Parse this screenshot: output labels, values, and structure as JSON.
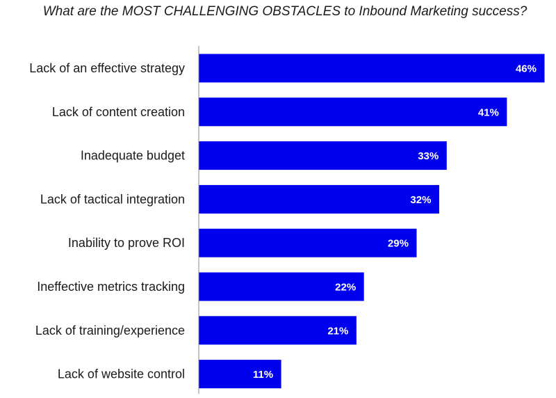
{
  "chart_data": {
    "type": "bar",
    "orientation": "horizontal",
    "title": "What are the MOST CHALLENGING OBSTACLES to Inbound Marketing success?",
    "categories": [
      "Lack of an effective strategy",
      "Lack of content creation",
      "Inadequate budget",
      "Lack of tactical integration",
      "Inability to prove ROI",
      "Ineffective metrics tracking",
      "Lack of training/experience",
      "Lack of website control"
    ],
    "values": [
      46,
      41,
      33,
      32,
      29,
      22,
      21,
      11
    ],
    "value_labels": [
      "46%",
      "41%",
      "33%",
      "32%",
      "29%",
      "22%",
      "21%",
      "11%"
    ],
    "xlim": [
      0,
      46
    ],
    "bar_color": "#0000ee",
    "bar_border_color": "#ffffff",
    "axis_line_color": "#888888",
    "grid": false,
    "legend": "none"
  }
}
